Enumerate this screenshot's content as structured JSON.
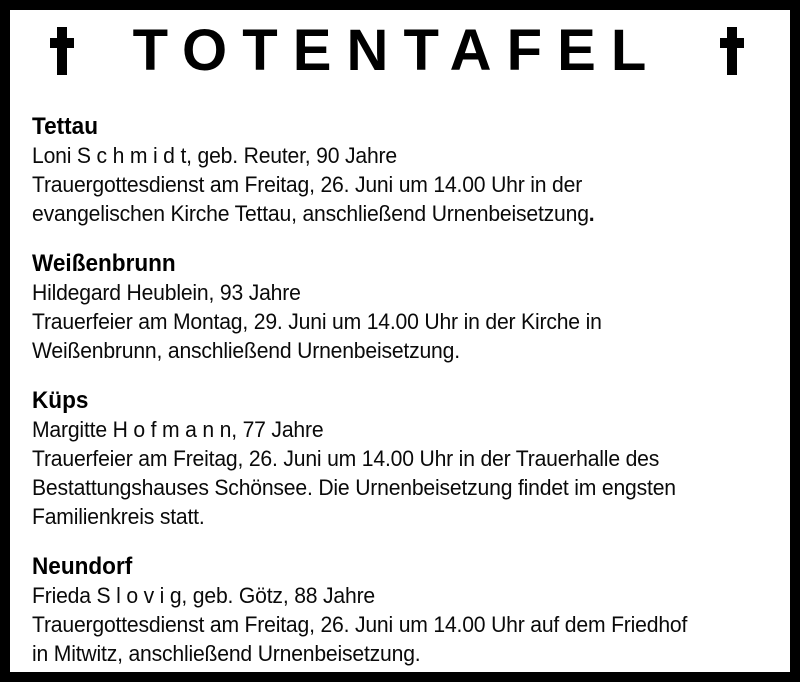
{
  "page": {
    "title": "TOTENTAFEL",
    "colors": {
      "frame_border": "#000000",
      "background": "#ffffff",
      "text": "#0a0a0a"
    }
  },
  "icons": {
    "cross_left": "†",
    "cross_right": "†"
  },
  "sections": [
    {
      "city": "Tettau",
      "lines": [
        [
          {
            "text": "Loni S c h m i d t, geb. Reuter, 90 Jahre"
          }
        ],
        [
          {
            "text": "Trauergottesdienst am Freitag, 26. Juni um 14.00 Uhr in der"
          }
        ],
        [
          {
            "text": "evangelischen Kirche Tettau, anschließend Urnenbeisetzung"
          },
          {
            "text": ".",
            "bold": true
          }
        ]
      ]
    },
    {
      "city": "Weißenbrunn",
      "lines": [
        [
          {
            "text": "Hildegard Heublein, 93 Jahre"
          }
        ],
        [
          {
            "text": "Trauerfeier am Montag, 29. Juni um 14.00 Uhr in der Kirche in"
          }
        ],
        [
          {
            "text": "Weißenbrunn, anschließend Urnenbeisetzung."
          }
        ]
      ]
    },
    {
      "city": "Küps",
      "lines": [
        [
          {
            "text": "Margitte H o f m a n n, 77 Jahre"
          }
        ],
        [
          {
            "text": "Trauerfeier am Freitag, 26. Juni um 14.00 Uhr in der Trauerhalle des"
          }
        ],
        [
          {
            "text": "Bestattungshauses Schönsee. Die Urnenbeisetzung findet im engsten"
          }
        ],
        [
          {
            "text": "Familienkreis statt."
          }
        ]
      ]
    },
    {
      "city": "Neundorf",
      "lines": [
        [
          {
            "text": "Frieda S l o v i g, geb. Götz, 88 Jahre"
          }
        ],
        [
          {
            "text": "Trauergottesdienst am Freitag, 26. Juni um 14.00 Uhr auf dem Friedhof"
          }
        ],
        [
          {
            "text": "in Mitwitz, anschließend Urnenbeisetzung."
          }
        ]
      ]
    }
  ]
}
